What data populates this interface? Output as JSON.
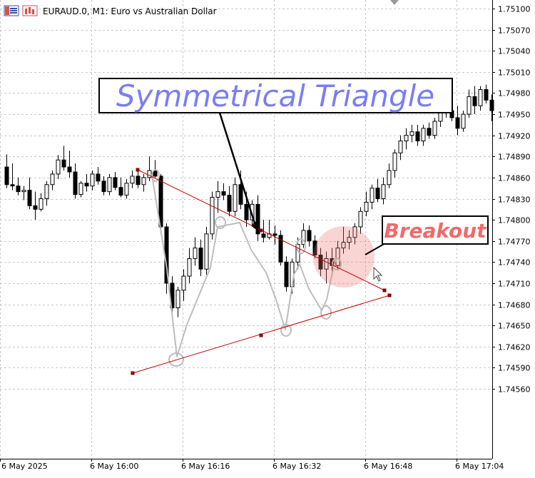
{
  "window": {
    "title": "EURAUD.0, M1:  Euro vs Australian Dollar",
    "icons": [
      "ohlc-icon",
      "chart-type-icon"
    ]
  },
  "chart_data": {
    "type": "candlestick",
    "symbol": "EURAUD.0",
    "timeframe": "M1",
    "yticks": [
      "1.75100",
      "1.75070",
      "1.75040",
      "1.75010",
      "1.74980",
      "1.74950",
      "1.74920",
      "1.74890",
      "1.74860",
      "1.74830",
      "1.74800",
      "1.74770",
      "1.74740",
      "1.74710",
      "1.74680",
      "1.74650",
      "1.74620",
      "1.74590",
      "1.74560"
    ],
    "ylim": [
      1.7453,
      1.7511
    ],
    "xticks": [
      "6 May 2025",
      "6 May 16:00",
      "6 May 16:16",
      "6 May 16:32",
      "6 May 16:48",
      "6 May 17:04"
    ],
    "grid": true,
    "candles": [
      [
        1.74875,
        1.74893,
        1.74845,
        1.7485
      ],
      [
        1.7485,
        1.7488,
        1.74842,
        1.74848
      ],
      [
        1.74848,
        1.7486,
        1.74835,
        1.7484
      ],
      [
        1.7484,
        1.74848,
        1.74828,
        1.74842
      ],
      [
        1.74842,
        1.7486,
        1.74815,
        1.7482
      ],
      [
        1.7482,
        1.7484,
        1.748,
        1.74815
      ],
      [
        1.74815,
        1.74838,
        1.74812,
        1.7483
      ],
      [
        1.7483,
        1.74855,
        1.7482,
        1.7485
      ],
      [
        1.7485,
        1.7487,
        1.74842,
        1.74865
      ],
      [
        1.74865,
        1.74892,
        1.74858,
        1.74885
      ],
      [
        1.74885,
        1.74905,
        1.7487,
        1.74875
      ],
      [
        1.74875,
        1.74898,
        1.7486,
        1.74868
      ],
      [
        1.74868,
        1.7488,
        1.7483,
        1.74836
      ],
      [
        1.74836,
        1.74855,
        1.74832,
        1.74852
      ],
      [
        1.74852,
        1.74865,
        1.7484,
        1.74848
      ],
      [
        1.74848,
        1.7487,
        1.74842,
        1.74865
      ],
      [
        1.74865,
        1.74875,
        1.7485,
        1.74855
      ],
      [
        1.74855,
        1.74862,
        1.74835,
        1.7484
      ],
      [
        1.7484,
        1.74865,
        1.74835,
        1.7486
      ],
      [
        1.7486,
        1.74868,
        1.74842,
        1.74846
      ],
      [
        1.74846,
        1.7486,
        1.74832,
        1.74835
      ],
      [
        1.74835,
        1.74858,
        1.7483,
        1.74852
      ],
      [
        1.74852,
        1.7487,
        1.74845,
        1.74862
      ],
      [
        1.74862,
        1.7487,
        1.74845,
        1.7485
      ],
      [
        1.7485,
        1.74865,
        1.7484,
        1.7486
      ],
      [
        1.7486,
        1.7489,
        1.74855,
        1.7487
      ],
      [
        1.7487,
        1.74885,
        1.7486,
        1.74862
      ],
      [
        1.74862,
        1.74865,
        1.7478,
        1.7479
      ],
      [
        1.7479,
        1.74795,
        1.74695,
        1.7471
      ],
      [
        1.7471,
        1.7472,
        1.7466,
        1.74675
      ],
      [
        1.74675,
        1.74705,
        1.74662,
        1.747
      ],
      [
        1.747,
        1.7473,
        1.74685,
        1.7472
      ],
      [
        1.7472,
        1.7476,
        1.7471,
        1.74745
      ],
      [
        1.74745,
        1.74775,
        1.74735,
        1.7476
      ],
      [
        1.7476,
        1.74772,
        1.7472,
        1.7473
      ],
      [
        1.7473,
        1.7479,
        1.74722,
        1.7478
      ],
      [
        1.7478,
        1.7484,
        1.74772,
        1.74832
      ],
      [
        1.74832,
        1.74855,
        1.7481,
        1.7484
      ],
      [
        1.7484,
        1.74852,
        1.74828,
        1.74835
      ],
      [
        1.74835,
        1.74848,
        1.74805,
        1.74812
      ],
      [
        1.74812,
        1.7486,
        1.74805,
        1.7485
      ],
      [
        1.7485,
        1.7487,
        1.74815,
        1.74822
      ],
      [
        1.74822,
        1.7484,
        1.7479,
        1.748
      ],
      [
        1.748,
        1.74828,
        1.7479,
        1.74822
      ],
      [
        1.74822,
        1.74835,
        1.7477,
        1.7478
      ],
      [
        1.7478,
        1.748,
        1.74768,
        1.74775
      ],
      [
        1.74775,
        1.748,
        1.74772,
        1.7478
      ],
      [
        1.7478,
        1.74792,
        1.74765,
        1.74778
      ],
      [
        1.74778,
        1.74785,
        1.74735,
        1.7474
      ],
      [
        1.7474,
        1.74748,
        1.74698,
        1.74705
      ],
      [
        1.74705,
        1.74745,
        1.74695,
        1.7474
      ],
      [
        1.7474,
        1.74775,
        1.7473,
        1.74765
      ],
      [
        1.74765,
        1.74795,
        1.7476,
        1.74785
      ],
      [
        1.74785,
        1.74792,
        1.74762,
        1.7477
      ],
      [
        1.7477,
        1.74778,
        1.74745,
        1.7475
      ],
      [
        1.7475,
        1.7476,
        1.7472,
        1.7473
      ],
      [
        1.7473,
        1.74755,
        1.7471,
        1.74745
      ],
      [
        1.74745,
        1.7476,
        1.7472,
        1.74735
      ],
      [
        1.74735,
        1.7477,
        1.74728,
        1.7476
      ],
      [
        1.7476,
        1.7479,
        1.74752,
        1.74768
      ],
      [
        1.74768,
        1.74785,
        1.74758,
        1.74775
      ],
      [
        1.74775,
        1.74795,
        1.74765,
        1.7479
      ],
      [
        1.7479,
        1.74818,
        1.7478,
        1.74812
      ],
      [
        1.74812,
        1.7484,
        1.74805,
        1.74825
      ],
      [
        1.74825,
        1.7485,
        1.74815,
        1.74845
      ],
      [
        1.74845,
        1.74858,
        1.74825,
        1.7483
      ],
      [
        1.7483,
        1.7486,
        1.74822,
        1.7485
      ],
      [
        1.7485,
        1.7488,
        1.74845,
        1.7487
      ],
      [
        1.7487,
        1.749,
        1.7486,
        1.74895
      ],
      [
        1.74895,
        1.7492,
        1.74885,
        1.74912
      ],
      [
        1.74912,
        1.7493,
        1.749,
        1.7492
      ],
      [
        1.7492,
        1.74935,
        1.7491,
        1.74925
      ],
      [
        1.74925,
        1.74935,
        1.74905,
        1.74912
      ],
      [
        1.74912,
        1.74935,
        1.74905,
        1.7493
      ],
      [
        1.7493,
        1.74938,
        1.74915,
        1.7492
      ],
      [
        1.7492,
        1.74945,
        1.74915,
        1.7494
      ],
      [
        1.7494,
        1.74975,
        1.74932,
        1.74965
      ],
      [
        1.74965,
        1.7498,
        1.74945,
        1.74955
      ],
      [
        1.74955,
        1.7497,
        1.7494,
        1.74945
      ],
      [
        1.74945,
        1.74962,
        1.7492,
        1.7493
      ],
      [
        1.7493,
        1.74955,
        1.74925,
        1.7495
      ],
      [
        1.7495,
        1.74985,
        1.74945,
        1.74975
      ],
      [
        1.74975,
        1.7499,
        1.7495,
        1.74962
      ],
      [
        1.74962,
        1.7499,
        1.74955,
        1.74985
      ],
      [
        1.74985,
        1.74992,
        1.74965,
        1.7497
      ],
      [
        1.7497,
        1.74978,
        1.7494,
        1.74955
      ]
    ],
    "annotations": {
      "title_label": "Symmetrical Triangle",
      "breakout_label": "Breakout"
    }
  }
}
